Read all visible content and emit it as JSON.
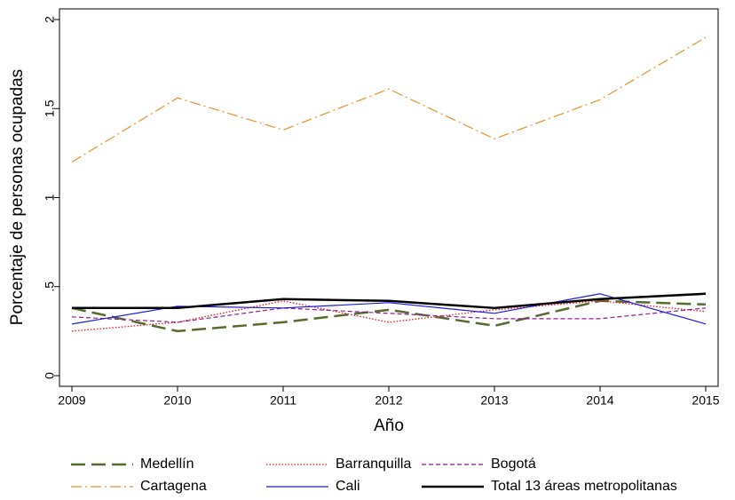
{
  "chart_data": {
    "type": "line",
    "xlabel": "Año",
    "ylabel": "Porcentaje de personas ocupadas",
    "x": [
      2009,
      2010,
      2011,
      2012,
      2013,
      2014,
      2015
    ],
    "xlim": [
      2009,
      2015
    ],
    "xticks": [
      2009,
      2010,
      2011,
      2012,
      2013,
      2014,
      2015
    ],
    "ylim": [
      0,
      2
    ],
    "yticks": [
      0,
      {
        "value": 0.5,
        "label": ".5"
      },
      1,
      1.5,
      2
    ],
    "series": [
      {
        "name": "Medellín",
        "color": "#556b2f",
        "style": "longdash",
        "values": [
          0.38,
          0.25,
          0.3,
          0.37,
          0.28,
          0.42,
          0.4
        ]
      },
      {
        "name": "Barranquilla",
        "color": "#e8141e",
        "style": "dot",
        "values": [
          0.25,
          0.3,
          0.42,
          0.3,
          0.37,
          0.42,
          0.36
        ]
      },
      {
        "name": "Bogotá",
        "color": "#8b1f8f",
        "style": "dash",
        "values": [
          0.33,
          0.3,
          0.38,
          0.35,
          0.32,
          0.32,
          0.38
        ]
      },
      {
        "name": "Cartagena",
        "color": "#e8922a",
        "style": "dashdot",
        "values": [
          1.2,
          1.56,
          1.38,
          1.61,
          1.33,
          1.55,
          1.9
        ]
      },
      {
        "name": "Cali",
        "color": "#1a1ae6",
        "style": "solid",
        "values": [
          0.29,
          0.39,
          0.38,
          0.41,
          0.35,
          0.46,
          0.29
        ]
      },
      {
        "name": "Total 13 áreas metropolitanas",
        "color": "#000000",
        "style": "thick",
        "values": [
          0.38,
          0.38,
          0.43,
          0.42,
          0.38,
          0.43,
          0.46
        ]
      }
    ]
  }
}
